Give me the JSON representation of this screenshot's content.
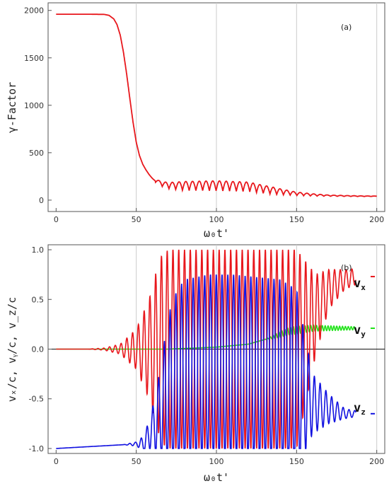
{
  "chart_data": [
    {
      "type": "line",
      "panel_label": "(a)",
      "xlabel": "ω₀t'",
      "ylabel": "γ-Factor",
      "xlim": [
        -5,
        205
      ],
      "ylim": [
        -120,
        2080
      ],
      "xticks": [
        "0",
        "50",
        "100",
        "150",
        "200"
      ],
      "yticks": [
        "0",
        "500",
        "1000",
        "1500",
        "2000"
      ],
      "grid": "vertical",
      "series": [
        {
          "color": "#e8171c",
          "x": [
            0,
            10,
            20,
            30,
            33,
            36,
            38,
            40,
            42,
            44,
            46,
            48,
            50,
            52,
            54,
            56,
            58,
            60,
            62,
            64,
            66,
            68,
            70,
            75,
            80,
            90,
            100,
            110,
            120,
            130,
            140,
            150,
            160,
            170,
            180,
            190,
            200
          ],
          "y": [
            1960,
            1960,
            1960,
            1958,
            1948,
            1910,
            1850,
            1740,
            1560,
            1330,
            1070,
            820,
            610,
            470,
            380,
            320,
            270,
            230,
            200,
            175,
            160,
            150,
            140,
            135,
            130,
            130,
            130,
            125,
            120,
            95,
            75,
            60,
            50,
            45,
            42,
            40,
            40
          ],
          "oscillation": {
            "from": 62,
            "to": 200,
            "period": 4.2,
            "peaks": [
              [
                62,
                40
              ],
              [
                80,
                95
              ],
              [
                100,
                105
              ],
              [
                120,
                100
              ],
              [
                135,
                75
              ],
              [
                150,
                35
              ],
              [
                170,
                12
              ],
              [
                200,
                4
              ]
            ]
          }
        }
      ]
    },
    {
      "type": "line",
      "panel_label": "(b)",
      "xlabel": "ω₀t'",
      "ylabel": "vₓ/c,  vᵧ/c,  v_z/c",
      "xlim": [
        -5,
        205
      ],
      "ylim": [
        -1.05,
        1.05
      ],
      "xticks": [
        "0",
        "50",
        "100",
        "150",
        "200"
      ],
      "yticks": [
        "-1.0",
        "-0.5",
        "0.0",
        "0.5",
        "1.0"
      ],
      "grid": "vertical",
      "zero_line": true,
      "legend_position": "right",
      "series": [
        {
          "name": "v",
          "subscript": "x",
          "color": "#e8171c",
          "x_end": 187,
          "period": 3.6,
          "amplitude": [
            [
              0,
              0
            ],
            [
              20,
              0
            ],
            [
              30,
              0.01
            ],
            [
              40,
              0.05
            ],
            [
              50,
              0.2
            ],
            [
              58,
              0.5
            ],
            [
              62,
              0.75
            ],
            [
              66,
              0.95
            ],
            [
              70,
              1.0
            ],
            [
              150,
              1.0
            ],
            [
              156,
              0.7
            ],
            [
              162,
              0.4
            ],
            [
              170,
              0.2
            ],
            [
              180,
              0.1
            ],
            [
              187,
              0.08
            ]
          ],
          "center": [
            [
              0,
              0
            ],
            [
              150,
              0
            ],
            [
              162,
              0.35
            ],
            [
              170,
              0.6
            ],
            [
              180,
              0.7
            ],
            [
              187,
              0.73
            ]
          ]
        },
        {
          "name": "v",
          "subscript": "y",
          "color": "#21e31a",
          "x_end": 187,
          "period": 1.8,
          "amplitude": [
            [
              0,
              0
            ],
            [
              130,
              0
            ],
            [
              140,
              0.03
            ],
            [
              150,
              0.04
            ],
            [
              160,
              0.03
            ],
            [
              187,
              0.015
            ]
          ],
          "center": [
            [
              0,
              0
            ],
            [
              70,
              0.0
            ],
            [
              100,
              0.02
            ],
            [
              120,
              0.05
            ],
            [
              135,
              0.12
            ],
            [
              145,
              0.18
            ],
            [
              160,
              0.21
            ],
            [
              187,
              0.21
            ]
          ]
        },
        {
          "name": "v",
          "subscript": "z",
          "color": "#1212e0",
          "x_end": 187,
          "period": 3.6,
          "amplitude": [
            [
              0,
              0
            ],
            [
              42,
              0
            ],
            [
              50,
              0.02
            ],
            [
              55,
              0.08
            ],
            [
              60,
              0.2
            ],
            [
              65,
              0.45
            ],
            [
              70,
              0.75
            ],
            [
              75,
              0.9
            ],
            [
              80,
              0.95
            ],
            [
              150,
              0.95
            ],
            [
              155,
              0.6
            ],
            [
              160,
              0.3
            ],
            [
              170,
              0.15
            ],
            [
              180,
              0.05
            ],
            [
              187,
              0.03
            ]
          ],
          "center": [
            [
              0,
              -1.0
            ],
            [
              55,
              -0.95
            ],
            [
              65,
              -0.65
            ],
            [
              70,
              -0.4
            ],
            [
              80,
              -0.25
            ],
            [
              95,
              -0.2
            ],
            [
              110,
              -0.2
            ],
            [
              140,
              -0.25
            ],
            [
              150,
              -0.35
            ],
            [
              155,
              -0.45
            ],
            [
              160,
              -0.55
            ],
            [
              170,
              -0.6
            ],
            [
              180,
              -0.65
            ],
            [
              187,
              -0.65
            ]
          ]
        }
      ]
    }
  ]
}
